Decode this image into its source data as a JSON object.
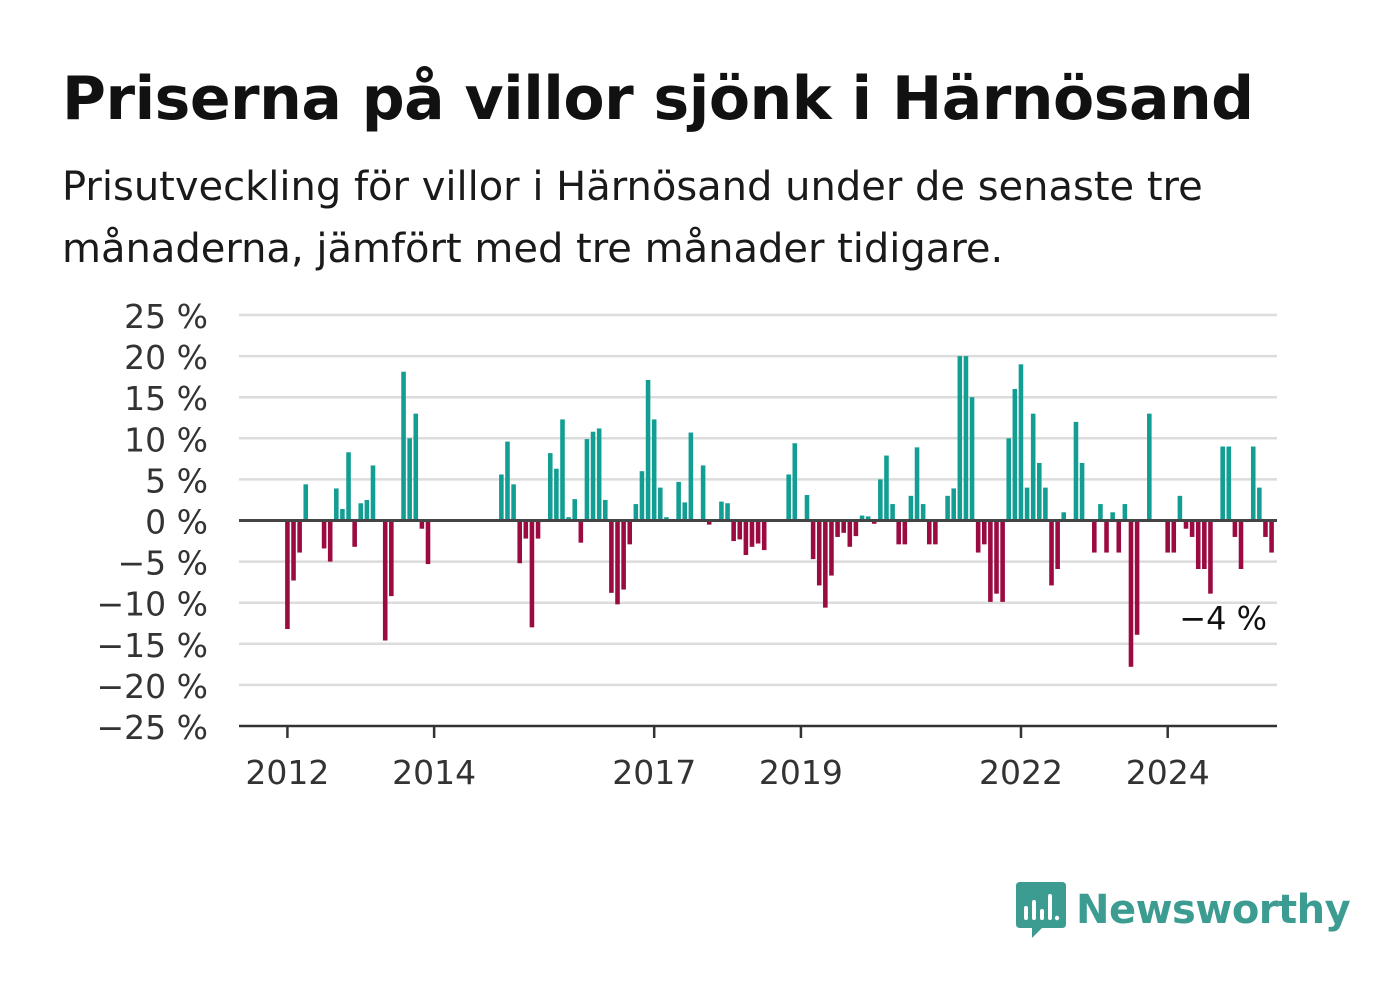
{
  "title": "Priserna på villor sjönk i Härnösand",
  "subtitle": "Prisutveckling för villor i Härnösand under de senaste tre månaderna, jämfört med tre månader tidigare.",
  "logo": {
    "text": "Newsworthy",
    "icon": "bar-chart-speech-bubble-icon",
    "color": "#3d9c91"
  },
  "colors": {
    "positive": "#139e94",
    "negative": "#9b0b42",
    "grid": "#dcdcdc",
    "axis": "#444444"
  },
  "chart_data": {
    "type": "bar",
    "title": "Priserna på villor sjönk i Härnösand",
    "xlabel": "",
    "ylabel": "",
    "ylim": [
      -25,
      25
    ],
    "grid": true,
    "legend": "none",
    "y_ticks": [
      25,
      20,
      15,
      10,
      5,
      0,
      -5,
      -10,
      -15,
      -20,
      -25
    ],
    "y_tick_labels": [
      "25 %",
      "20 %",
      "15 %",
      "10 %",
      "5 %",
      "0 %",
      "−5 %",
      "−10 %",
      "−15 %",
      "−20 %",
      "−25 %"
    ],
    "x_ticks": [
      2012,
      2014,
      2017,
      2019,
      2022,
      2024
    ],
    "x_tick_labels": [
      "2012",
      "2014",
      "2017",
      "2019",
      "2022",
      "2024"
    ],
    "x_range": [
      2011.34,
      2025.49
    ],
    "bar_start": 2012.0,
    "bar_step_years": 0.08333,
    "values": [
      -13.2,
      -7.3,
      -3.9,
      4.4,
      null,
      null,
      -3.4,
      -5.0,
      3.9,
      1.4,
      8.3,
      -3.2,
      2.1,
      2.5,
      6.7,
      null,
      -14.6,
      -9.2,
      null,
      18.1,
      10.0,
      13.0,
      -1.0,
      -5.3,
      null,
      null,
      null,
      null,
      null,
      null,
      null,
      null,
      null,
      null,
      null,
      5.6,
      9.6,
      4.4,
      -5.2,
      -2.2,
      -13.0,
      -2.2,
      null,
      8.2,
      6.3,
      12.3,
      0.4,
      2.6,
      -2.7,
      9.9,
      10.8,
      11.2,
      2.5,
      -8.8,
      -10.2,
      -8.4,
      -2.9,
      2.0,
      6.0,
      17.1,
      12.3,
      4.0,
      0.4,
      null,
      4.7,
      2.2,
      10.7,
      null,
      6.7,
      -0.5,
      null,
      2.3,
      2.1,
      -2.5,
      -2.3,
      -4.2,
      -3.2,
      -2.8,
      -3.6,
      null,
      null,
      null,
      5.6,
      9.4,
      null,
      3.1,
      -4.7,
      -7.9,
      -10.6,
      -6.7,
      -2.0,
      -1.5,
      -3.2,
      -1.9,
      0.6,
      0.5,
      -0.4,
      5.0,
      7.9,
      2.0,
      -2.9,
      -2.9,
      3.0,
      8.9,
      2.0,
      -2.9,
      -2.9,
      null,
      3.0,
      3.9,
      20.0,
      20.0,
      15.0,
      -3.9,
      -2.9,
      -9.9,
      -8.9,
      -9.9,
      10.0,
      16.0,
      19.0,
      4.0,
      13.0,
      7.0,
      4.0,
      -7.9,
      -5.9,
      1.0,
      null,
      12.0,
      7.0,
      null,
      -3.9,
      2.0,
      -3.9,
      1.0,
      -3.9,
      2.0,
      -17.8,
      -13.9,
      null,
      13.0,
      null,
      null,
      -3.9,
      -3.9,
      3.0,
      -1.0,
      -2.0,
      -5.9,
      -5.9,
      -8.9,
      null,
      9.0,
      9.0,
      -2.0,
      -5.9,
      null,
      9.0,
      4.0,
      -2.0,
      -3.9
    ],
    "annotation": {
      "text": "−4 %",
      "value": -4
    }
  }
}
